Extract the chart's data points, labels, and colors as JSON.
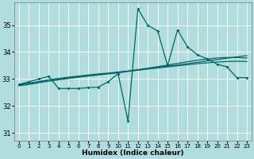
{
  "xlabel": "Humidex (Indice chaleur)",
  "xlim": [
    -0.5,
    23.5
  ],
  "ylim": [
    30.7,
    35.85
  ],
  "yticks": [
    31,
    32,
    33,
    34,
    35
  ],
  "background_color": "#b0dede",
  "grid_color": "#ffffff",
  "line_color": "#006666",
  "x": [
    0,
    1,
    2,
    3,
    4,
    5,
    6,
    7,
    8,
    9,
    10,
    11,
    12,
    13,
    14,
    15,
    16,
    17,
    18,
    19,
    20,
    21,
    22,
    23
  ],
  "y_main": [
    32.8,
    32.9,
    33.0,
    33.1,
    32.65,
    32.65,
    32.65,
    32.68,
    32.7,
    32.9,
    33.2,
    31.45,
    35.6,
    35.0,
    34.78,
    33.5,
    34.82,
    34.2,
    33.9,
    33.75,
    33.55,
    33.45,
    33.05,
    33.05
  ],
  "y_trend1": [
    32.78,
    32.84,
    32.9,
    32.97,
    33.02,
    33.07,
    33.11,
    33.15,
    33.19,
    33.22,
    33.26,
    33.29,
    33.33,
    33.37,
    33.41,
    33.45,
    33.49,
    33.53,
    33.57,
    33.6,
    33.63,
    33.65,
    33.66,
    33.65
  ],
  "y_trend2": [
    32.78,
    32.84,
    32.9,
    32.96,
    33.0,
    33.04,
    33.08,
    33.12,
    33.16,
    33.2,
    33.25,
    33.3,
    33.35,
    33.4,
    33.46,
    33.52,
    33.58,
    33.64,
    33.7,
    33.74,
    33.78,
    33.8,
    33.8,
    33.78
  ],
  "y_trend3": [
    32.75,
    32.8,
    32.86,
    32.92,
    32.97,
    33.02,
    33.07,
    33.11,
    33.15,
    33.19,
    33.23,
    33.28,
    33.33,
    33.38,
    33.43,
    33.48,
    33.52,
    33.57,
    33.62,
    33.67,
    33.72,
    33.77,
    33.82,
    33.87
  ]
}
